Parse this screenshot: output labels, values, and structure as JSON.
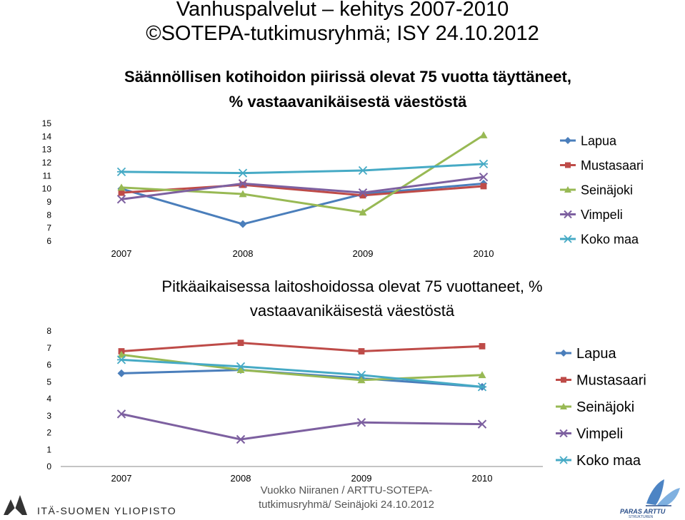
{
  "header": {
    "line1": "Vanhuspalvelut – kehitys 2007-2010",
    "line2": "©SOTEPA-tutkimusryhmä; ISY 24.10.2012"
  },
  "footer": {
    "credit_line1": "Vuokko Niiranen / ARTTU-SOTEPA-",
    "credit_line2": "tutkimusryhmä/ Seinäjoki 24.10.2012",
    "logo_left": "ITÄ-SUOMEN YLIOPISTO",
    "logo_right": "PARAS ARTTU",
    "logo_right_sub": "STRUKTUREN"
  },
  "colors": {
    "Lapua": "#4a7ebb",
    "Mustasaari": "#be4b48",
    "Seinäjoki": "#98b954",
    "Vimpeli": "#7d60a0",
    "Koko maa": "#46aac5"
  },
  "chart_data": [
    {
      "type": "line",
      "title": "Säännöllisen kotihoidon piirissä olevat 75 vuotta täyttäneet,\n% vastaavanikäisestä väestöstä",
      "categories": [
        "2007",
        "2008",
        "2009",
        "2010"
      ],
      "ylim": [
        6,
        15
      ],
      "yticks": [
        "6",
        "7",
        "8",
        "9",
        "10",
        "11",
        "12",
        "13",
        "14",
        "15"
      ],
      "grid": false,
      "legend": "right",
      "series": [
        {
          "name": "Lapua",
          "marker": "diamond",
          "values": [
            10.0,
            7.3,
            9.6,
            10.4
          ]
        },
        {
          "name": "Mustasaari",
          "marker": "square",
          "values": [
            9.7,
            10.3,
            9.5,
            10.2
          ]
        },
        {
          "name": "Seinäjoki",
          "marker": "triangle",
          "values": [
            10.1,
            9.6,
            8.2,
            14.1
          ]
        },
        {
          "name": "Vimpeli",
          "marker": "x",
          "values": [
            9.2,
            10.4,
            9.7,
            10.9
          ]
        },
        {
          "name": "Koko maa",
          "marker": "star",
          "values": [
            11.3,
            11.2,
            11.4,
            11.9
          ]
        }
      ]
    },
    {
      "type": "line",
      "title": "Pitkäaikaisessa laitoshoidossa olevat 75 vuottaneet, %\nvastaavanikäisestä väestöstä",
      "categories": [
        "2007",
        "2008",
        "2009",
        "2010"
      ],
      "ylim": [
        0,
        8
      ],
      "yticks": [
        "0",
        "1",
        "2",
        "3",
        "4",
        "5",
        "6",
        "7",
        "8"
      ],
      "grid": false,
      "legend": "right",
      "series": [
        {
          "name": "Lapua",
          "marker": "diamond",
          "values": [
            5.5,
            5.7,
            5.2,
            4.7
          ]
        },
        {
          "name": "Mustasaari",
          "marker": "square",
          "values": [
            6.8,
            7.3,
            6.8,
            7.1
          ]
        },
        {
          "name": "Seinäjoki",
          "marker": "triangle",
          "values": [
            6.6,
            5.7,
            5.1,
            5.4
          ]
        },
        {
          "name": "Vimpeli",
          "marker": "x",
          "values": [
            3.1,
            1.6,
            2.6,
            2.5
          ]
        },
        {
          "name": "Koko maa",
          "marker": "star",
          "values": [
            6.3,
            5.9,
            5.4,
            4.7
          ]
        }
      ]
    }
  ]
}
